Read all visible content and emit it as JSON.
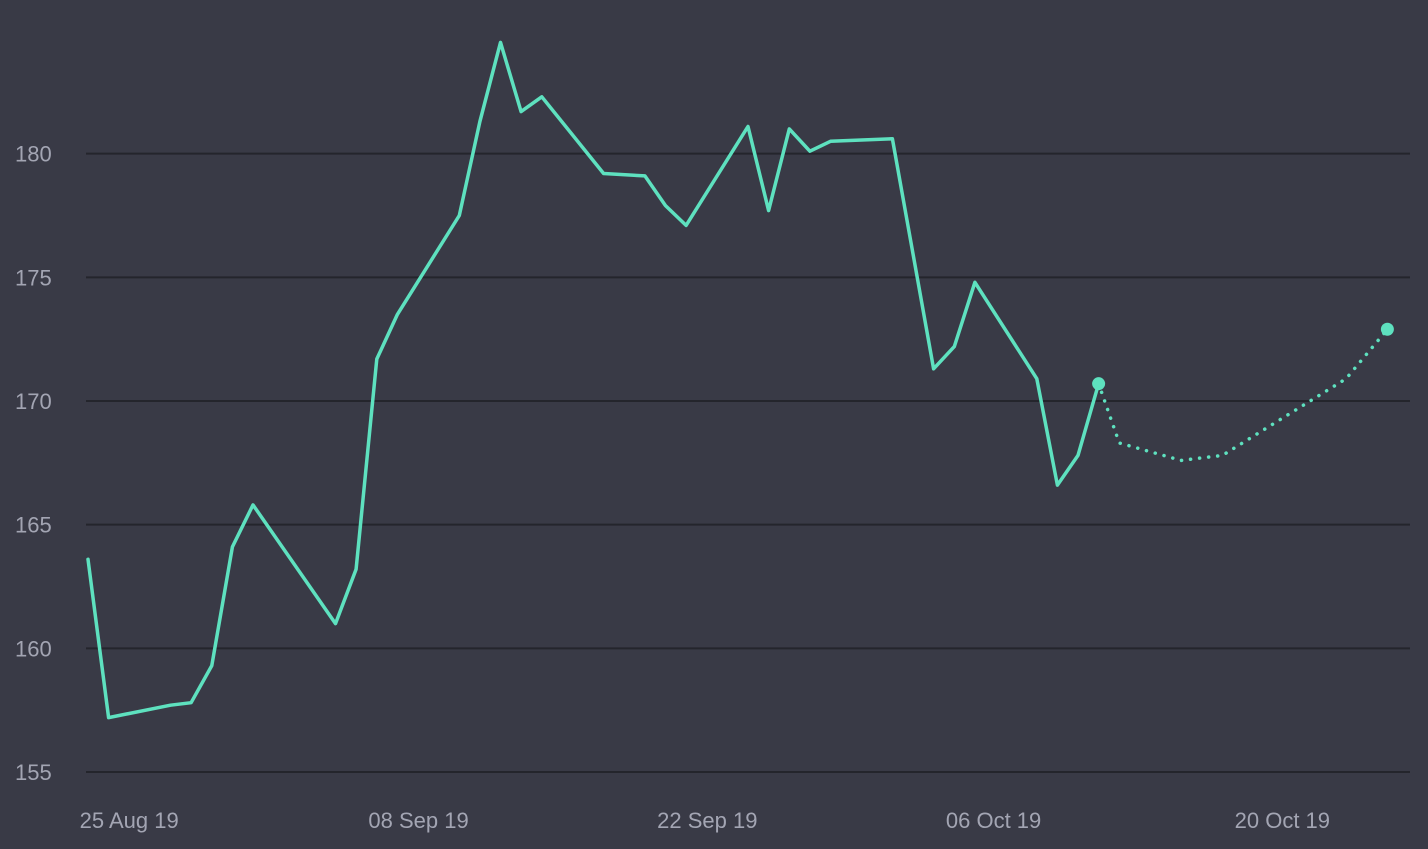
{
  "colors": {
    "background": "#393a46",
    "grid": "#24252c",
    "tick_text": "#a3a5b3",
    "series": "#5ee1bf"
  },
  "chart_data": {
    "type": "line",
    "title": "",
    "xlabel": "",
    "ylabel": "",
    "ylim": [
      155,
      185
    ],
    "xlim": [
      "2019-08-24",
      "2019-10-27"
    ],
    "grid": "horizontal",
    "legend": "none",
    "y_ticks": [
      {
        "value": 155,
        "label": "155"
      },
      {
        "value": 160,
        "label": "160"
      },
      {
        "value": 165,
        "label": "165"
      },
      {
        "value": 170,
        "label": "170"
      },
      {
        "value": 175,
        "label": "175"
      },
      {
        "value": 180,
        "label": "180"
      }
    ],
    "x_ticks": [
      {
        "value": "2019-08-25",
        "label": "25 Aug 19"
      },
      {
        "value": "2019-09-08",
        "label": "08 Sep 19"
      },
      {
        "value": "2019-09-22",
        "label": "22 Sep 19"
      },
      {
        "value": "2019-10-06",
        "label": "06 Oct 19"
      },
      {
        "value": "2019-10-20",
        "label": "20 Oct 19"
      }
    ],
    "series": [
      {
        "style": "solid",
        "end_marker": true,
        "points": [
          {
            "x": "2019-08-24",
            "y": 163.6
          },
          {
            "x": "2019-08-25",
            "y": 157.2
          },
          {
            "x": "2019-08-28",
            "y": 157.7
          },
          {
            "x": "2019-08-29",
            "y": 157.8
          },
          {
            "x": "2019-08-30",
            "y": 159.3
          },
          {
            "x": "2019-08-31",
            "y": 164.1
          },
          {
            "x": "2019-09-01",
            "y": 165.8
          },
          {
            "x": "2019-09-05",
            "y": 161.0
          },
          {
            "x": "2019-09-06",
            "y": 163.2
          },
          {
            "x": "2019-09-07",
            "y": 171.7
          },
          {
            "x": "2019-09-08",
            "y": 173.5
          },
          {
            "x": "2019-09-11",
            "y": 177.5
          },
          {
            "x": "2019-09-12",
            "y": 181.3
          },
          {
            "x": "2019-09-13",
            "y": 184.5
          },
          {
            "x": "2019-09-14",
            "y": 181.7
          },
          {
            "x": "2019-09-15",
            "y": 182.3
          },
          {
            "x": "2019-09-18",
            "y": 179.2
          },
          {
            "x": "2019-09-20",
            "y": 179.1
          },
          {
            "x": "2019-09-21",
            "y": 177.9
          },
          {
            "x": "2019-09-22",
            "y": 177.1
          },
          {
            "x": "2019-09-25",
            "y": 181.1
          },
          {
            "x": "2019-09-26",
            "y": 177.7
          },
          {
            "x": "2019-09-27",
            "y": 181.0
          },
          {
            "x": "2019-09-28",
            "y": 180.1
          },
          {
            "x": "2019-09-29",
            "y": 180.5
          },
          {
            "x": "2019-10-02",
            "y": 180.6
          },
          {
            "x": "2019-10-04",
            "y": 171.3
          },
          {
            "x": "2019-10-05",
            "y": 172.2
          },
          {
            "x": "2019-10-06",
            "y": 174.8
          },
          {
            "x": "2019-10-09",
            "y": 170.9
          },
          {
            "x": "2019-10-10",
            "y": 166.6
          },
          {
            "x": "2019-10-11",
            "y": 167.8
          },
          {
            "x": "2019-10-12",
            "y": 170.7
          }
        ]
      },
      {
        "style": "dotted",
        "end_marker": true,
        "points": [
          {
            "x": "2019-10-12",
            "y": 170.7
          },
          {
            "x": "2019-10-13",
            "y": 168.3
          },
          {
            "x": "2019-10-16",
            "y": 167.6
          },
          {
            "x": "2019-10-18",
            "y": 167.8
          },
          {
            "x": "2019-10-24",
            "y": 170.9
          },
          {
            "x": "2019-10-26",
            "y": 172.9
          }
        ]
      }
    ]
  }
}
